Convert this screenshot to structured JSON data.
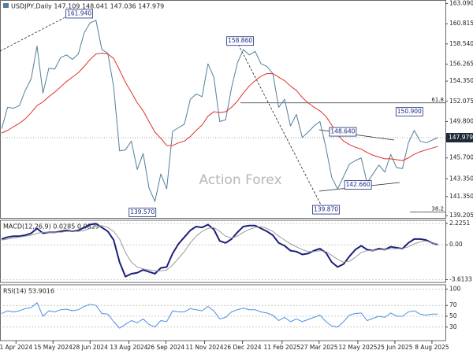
{
  "chart_data": [
    {
      "type": "line",
      "title": "USDJPY,Daily 147.109 148.041 147.036 147.979",
      "watermark": "Action Forex",
      "x": [
        "2024-03-15",
        "2024-03-22",
        "2024-03-29",
        "2024-04-05",
        "2024-04-12",
        "2024-04-19",
        "2024-04-26",
        "2024-05-03",
        "2024-05-10",
        "2024-05-17",
        "2024-05-24",
        "2024-05-31",
        "2024-06-07",
        "2024-06-14",
        "2024-06-21",
        "2024-06-28",
        "2024-07-05",
        "2024-07-12",
        "2024-07-19",
        "2024-07-26",
        "2024-08-02",
        "2024-08-09",
        "2024-08-16",
        "2024-08-23",
        "2024-08-30",
        "2024-09-06",
        "2024-09-13",
        "2024-09-20",
        "2024-09-27",
        "2024-10-04",
        "2024-10-11",
        "2024-10-18",
        "2024-10-25",
        "2024-11-01",
        "2024-11-08",
        "2024-11-15",
        "2024-11-22",
        "2024-11-29",
        "2024-12-06",
        "2024-12-13",
        "2024-12-20",
        "2024-12-27",
        "2025-01-03",
        "2025-01-10",
        "2025-01-17",
        "2025-01-24",
        "2025-01-31",
        "2025-02-07",
        "2025-02-14",
        "2025-02-21",
        "2025-02-28",
        "2025-03-07",
        "2025-03-14",
        "2025-03-21",
        "2025-03-28",
        "2025-04-04",
        "2025-04-11",
        "2025-04-18",
        "2025-04-25",
        "2025-05-02",
        "2025-05-09",
        "2025-05-16",
        "2025-05-23",
        "2025-05-30",
        "2025-06-06",
        "2025-06-13",
        "2025-06-20",
        "2025-06-27",
        "2025-07-04",
        "2025-07-11",
        "2025-07-18",
        "2025-07-25",
        "2025-08-01",
        "2025-08-08",
        "2025-08-15"
      ],
      "xlim": [
        "2024-03-13",
        "2025-08-24"
      ],
      "xticks": [
        {
          "value": "2024-04-01",
          "label": "1 Apr 2024"
        },
        {
          "value": "2024-05-15",
          "label": "15 May 2024"
        },
        {
          "value": "2024-06-28",
          "label": "28 Jun 2024"
        },
        {
          "value": "2024-08-13",
          "label": "13 Aug 2024"
        },
        {
          "value": "2024-09-26",
          "label": "26 Sep 2024"
        },
        {
          "value": "2024-11-11",
          "label": "11 Nov 2024"
        },
        {
          "value": "2024-12-26",
          "label": "26 Dec 2024"
        },
        {
          "value": "2025-02-11",
          "label": "11 Feb 2025"
        },
        {
          "value": "2025-03-27",
          "label": "27 Mar 2025"
        },
        {
          "value": "2025-05-12",
          "label": "12 May 2025"
        },
        {
          "value": "2025-06-25",
          "label": "25 Jun 2025"
        },
        {
          "value": "2025-08-08",
          "label": "8 Aug 2025"
        }
      ],
      "ylim": [
        138.9,
        163.44
      ],
      "yticks": [
        {
          "value": 163.09,
          "label": "163.090"
        },
        {
          "value": 160.815,
          "label": "160.815"
        },
        {
          "value": 158.54,
          "label": "158.540"
        },
        156.265,
        {
          "value": 154.35,
          "label": "154.350"
        },
        152.075,
        {
          "value": 149.8,
          "label": "149.800"
        },
        {
          "value": 145.7,
          "label": "145.700"
        },
        {
          "value": 143.35,
          "label": "143.350"
        },
        {
          "value": 141.35,
          "label": "141.350"
        },
        139.205
      ],
      "grid": false,
      "series": [
        {
          "color": "#4f7f9c",
          "values": [
            149.0,
            151.4,
            151.3,
            151.6,
            153.3,
            154.6,
            158.3,
            153.0,
            155.8,
            155.7,
            157.0,
            157.3,
            156.8,
            157.4,
            159.8,
            160.9,
            161.2,
            157.9,
            157.5,
            153.7,
            146.5,
            146.6,
            147.6,
            144.4,
            146.2,
            142.3,
            140.8,
            143.9,
            142.2,
            148.7,
            149.1,
            149.5,
            152.3,
            152.9,
            152.6,
            156.3,
            154.8,
            149.8,
            150.0,
            153.6,
            156.4,
            157.9,
            157.3,
            157.7,
            156.3,
            156.0,
            155.2,
            151.4,
            152.3,
            149.3,
            150.6,
            148.0,
            148.6,
            149.3,
            149.8,
            146.9,
            143.5,
            142.2,
            143.6,
            145.0,
            145.4,
            145.7,
            142.9,
            143.9,
            144.9,
            144.1,
            146.1,
            144.6,
            144.5,
            147.4,
            148.8,
            147.6,
            147.4,
            147.7,
            147.979
          ]
        },
        {
          "color": "#e0302a",
          "values": [
            148.5,
            148.8,
            149.2,
            149.6,
            150.1,
            150.8,
            151.6,
            152.0,
            152.6,
            153.1,
            153.7,
            154.3,
            154.8,
            155.3,
            156.0,
            156.8,
            157.4,
            157.5,
            157.4,
            156.9,
            155.6,
            154.2,
            153.1,
            151.9,
            151.0,
            149.8,
            148.6,
            147.9,
            147.1,
            147.1,
            147.4,
            147.6,
            148.1,
            148.8,
            149.4,
            150.4,
            150.9,
            150.8,
            150.9,
            151.4,
            152.1,
            153.0,
            153.8,
            154.4,
            154.9,
            155.2,
            155.2,
            154.8,
            154.4,
            153.8,
            153.3,
            152.5,
            151.9,
            151.4,
            151.0,
            150.4,
            149.4,
            148.3,
            147.6,
            147.2,
            146.9,
            146.7,
            146.3,
            146.0,
            145.8,
            145.6,
            145.6,
            145.5,
            145.4,
            145.7,
            146.1,
            146.4,
            146.6,
            146.8,
            147.0
          ]
        }
      ],
      "annotations": [
        {
          "text": "161.940",
          "x": "2024-07-03",
          "y": 161.94
        },
        {
          "text": "139.570",
          "x": "2024-09-16",
          "y": 139.57
        },
        {
          "text": "158.860",
          "x": "2025-01-10",
          "y": 158.86
        },
        {
          "text": "139.870",
          "x": "2025-04-22",
          "y": 139.87
        },
        {
          "text": "148.640",
          "x": "2025-05-12",
          "y": 148.64
        },
        {
          "text": "142.660",
          "x": "2025-05-30",
          "y": 142.66
        },
        {
          "text": "150.900",
          "x": "2025-07-30",
          "y": 150.9
        }
      ],
      "levels": [
        {
          "label": "61.8",
          "value": 151.9
        },
        {
          "label": "38.2",
          "value": 139.6
        }
      ]
    },
    {
      "type": "line",
      "title": "MACD(12,26,9) 0.0285 0.0829",
      "ylim": [
        -3.9,
        2.55
      ],
      "yticks": [
        2.2251,
        {
          "value": 0,
          "label": "0.00"
        },
        -3.6133
      ],
      "grid": true,
      "series": [
        {
          "color": "#1a1f7a",
          "values": [
            0.6,
            0.8,
            0.9,
            0.9,
            1.0,
            1.2,
            1.7,
            1.2,
            1.3,
            1.3,
            1.4,
            1.5,
            1.4,
            1.5,
            1.8,
            2.1,
            2.2,
            1.8,
            1.4,
            0.5,
            -1.8,
            -3.3,
            -3.0,
            -2.9,
            -2.6,
            -2.8,
            -3.0,
            -2.4,
            -2.3,
            -0.9,
            0.1,
            0.8,
            1.5,
            1.9,
            1.8,
            2.1,
            1.6,
            0.4,
            0.2,
            0.6,
            1.3,
            1.9,
            2.0,
            2.0,
            1.7,
            1.4,
            1.0,
            0.2,
            -0.1,
            -0.6,
            -0.7,
            -1.0,
            -0.9,
            -0.6,
            -0.4,
            -0.8,
            -1.8,
            -2.3,
            -2.0,
            -1.2,
            -0.5,
            -0.1,
            -0.5,
            -0.6,
            -0.4,
            -0.5,
            -0.2,
            -0.3,
            -0.4,
            0.2,
            0.6,
            0.6,
            0.5,
            0.2,
            0.0285
          ]
        },
        {
          "color": "#9a9a9a",
          "values": [
            0.5,
            0.6,
            0.7,
            0.8,
            0.9,
            1.0,
            1.2,
            1.3,
            1.3,
            1.3,
            1.3,
            1.4,
            1.4,
            1.4,
            1.5,
            1.7,
            1.9,
            2.0,
            1.8,
            1.4,
            0.6,
            -0.8,
            -1.8,
            -2.3,
            -2.5,
            -2.6,
            -2.7,
            -2.7,
            -2.6,
            -2.1,
            -1.4,
            -0.7,
            0.2,
            0.9,
            1.4,
            1.7,
            1.8,
            1.4,
            0.9,
            0.7,
            0.9,
            1.3,
            1.6,
            1.8,
            1.9,
            1.7,
            1.4,
            0.9,
            0.5,
            0.1,
            -0.2,
            -0.5,
            -0.7,
            -0.7,
            -0.6,
            -0.7,
            -1.1,
            -1.5,
            -1.8,
            -1.7,
            -1.3,
            -0.8,
            -0.6,
            -0.6,
            -0.5,
            -0.5,
            -0.4,
            -0.4,
            -0.4,
            -0.2,
            0.1,
            0.3,
            0.4,
            0.2,
            0.0829
          ]
        }
      ]
    },
    {
      "type": "line",
      "title": "RSI(14) 53.9016",
      "ylim": [
        5,
        108
      ],
      "yticks": [
        100,
        70,
        50,
        30
      ],
      "grid": true,
      "series": [
        {
          "color": "#4a90e2",
          "values": [
            55,
            60,
            58,
            60,
            64,
            66,
            75,
            50,
            60,
            58,
            62,
            63,
            60,
            62,
            68,
            72,
            70,
            55,
            54,
            40,
            28,
            35,
            42,
            38,
            45,
            35,
            30,
            42,
            40,
            60,
            58,
            58,
            64,
            62,
            60,
            68,
            60,
            45,
            48,
            58,
            62,
            65,
            62,
            62,
            58,
            56,
            52,
            42,
            48,
            40,
            45,
            40,
            44,
            48,
            52,
            40,
            32,
            30,
            40,
            52,
            55,
            56,
            42,
            46,
            50,
            48,
            56,
            50,
            50,
            58,
            60,
            54,
            52,
            54,
            53.9016
          ]
        }
      ]
    }
  ]
}
